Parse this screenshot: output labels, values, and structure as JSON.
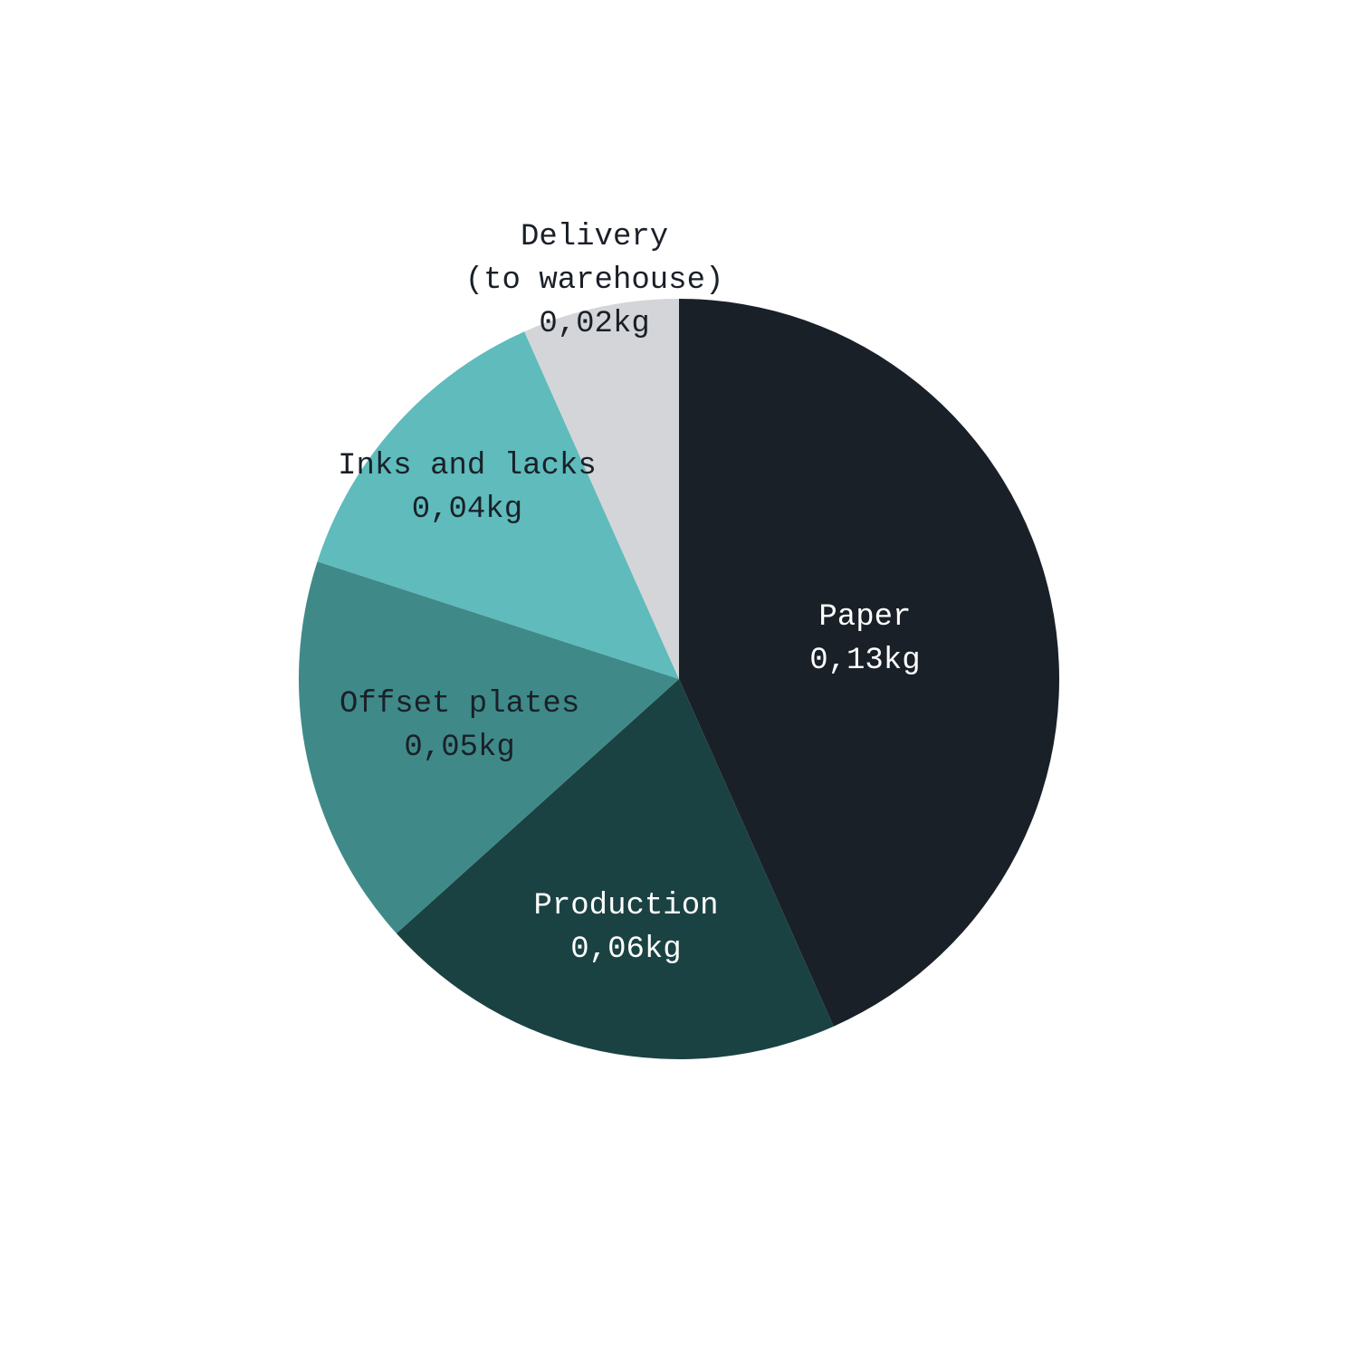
{
  "chart_data": {
    "type": "pie",
    "categories": [
      "Paper",
      "Production",
      "Offset plates",
      "Inks and lacks",
      "Delivery\n(to warehouse)"
    ],
    "values": [
      0.13,
      0.06,
      0.05,
      0.04,
      0.02
    ],
    "value_labels": [
      "0,13kg",
      "0,06kg",
      "0,05kg",
      "0,04kg",
      "0,02kg"
    ],
    "colors": [
      "#1a2028",
      "#1b4242",
      "#3f8a89",
      "#5fbbbc",
      "#d4d5d8"
    ]
  }
}
